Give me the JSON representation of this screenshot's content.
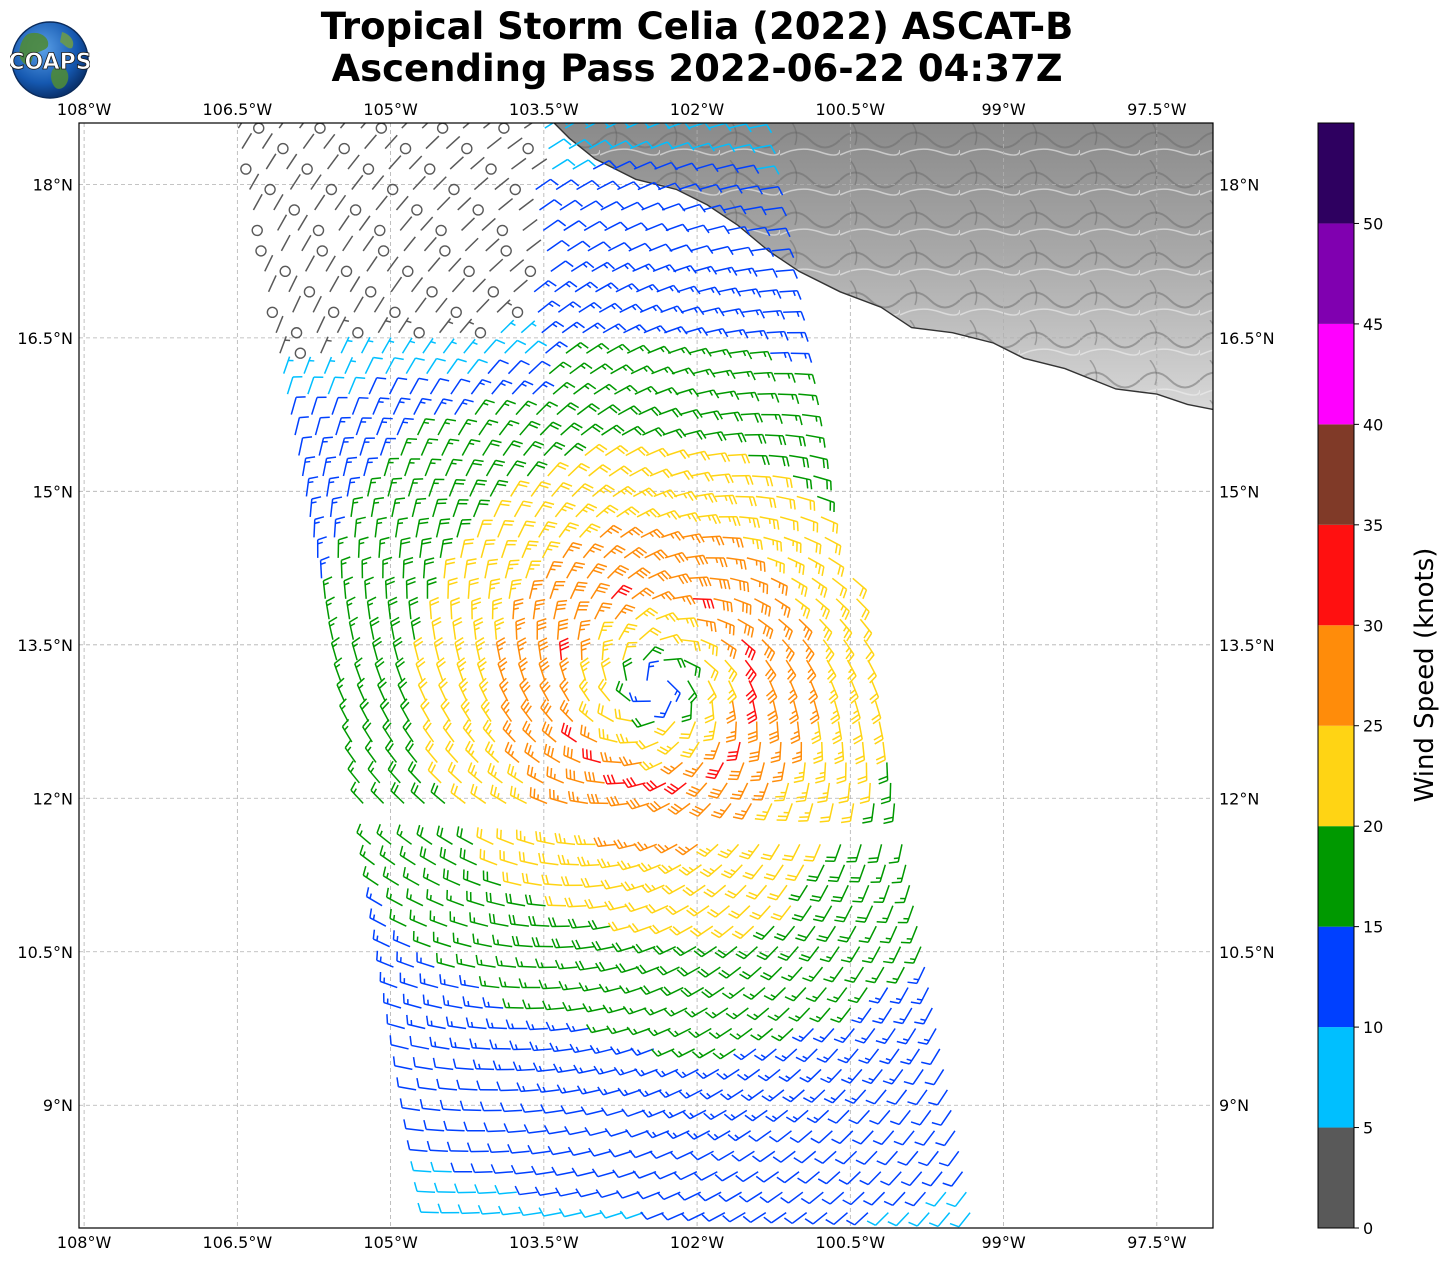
{
  "title": {
    "line1": "Tropical Storm Celia (2022) ASCAT-B",
    "line2": "Ascending Pass 2022-06-22 04:37Z"
  },
  "logo": {
    "text": "COAPS"
  },
  "axes": {
    "lon_labels": [
      "108°W",
      "106.5°W",
      "105°W",
      "103.5°W",
      "102°W",
      "100.5°W",
      "99°W",
      "97.5°W"
    ],
    "lon_values": [
      -108,
      -106.5,
      -105,
      -103.5,
      -102,
      -100.5,
      -99,
      -97.5
    ],
    "lat_labels": [
      "18°N",
      "16.5°N",
      "15°N",
      "13.5°N",
      "12°N",
      "10.5°N",
      "9°N"
    ],
    "lat_values": [
      18,
      16.5,
      15,
      13.5,
      12,
      10.5,
      9
    ],
    "lon_range": [
      -108.05,
      -96.95
    ],
    "lat_range": [
      7.8,
      18.6
    ]
  },
  "storm_center": {
    "lon": -102.4,
    "lat": 13.1
  },
  "swath": {
    "left_edge_top": [
      -106.5,
      18.6
    ],
    "left_edge_bottom": [
      -104.5,
      7.8
    ],
    "right_edge_top": [
      -101.2,
      17.5
    ],
    "right_edge_bottom": [
      -99.1,
      7.8
    ]
  },
  "colorbar": {
    "label": "Wind Speed (knots)",
    "tick_labels": [
      "0",
      "5",
      "10",
      "15",
      "20",
      "25",
      "30",
      "35",
      "40",
      "45",
      "50"
    ],
    "bounds": [
      0,
      5,
      10,
      15,
      20,
      25,
      30,
      35,
      40,
      45,
      50,
      55
    ],
    "colors": [
      "#595959",
      "#00bfff",
      "#0040ff",
      "#009900",
      "#ffd414",
      "#ff8c0a",
      "#ff1010",
      "#803a28",
      "#ff00ff",
      "#8000b0",
      "#2e0060"
    ]
  },
  "colors": {
    "coastline": "#333333",
    "grid": "#b0b0b0",
    "land_light": "#f2f2f2",
    "land_dark": "#7a7a7a"
  }
}
